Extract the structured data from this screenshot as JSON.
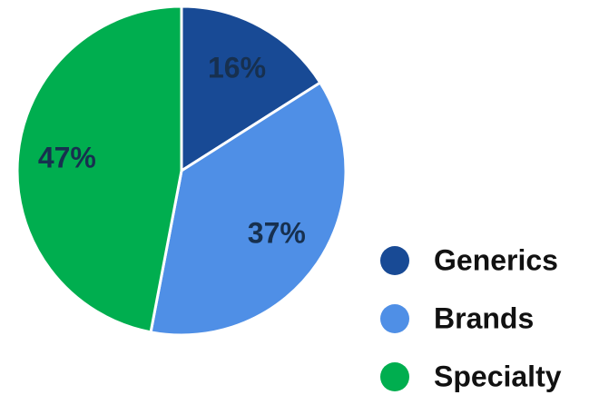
{
  "chart_data": {
    "type": "pie",
    "categories": [
      "Generics",
      "Brands",
      "Specialty"
    ],
    "values": [
      16,
      37,
      47
    ],
    "value_labels": [
      "16%",
      "37%",
      "47%"
    ],
    "colors": [
      "#184a95",
      "#4f8fe6",
      "#00ae4f"
    ],
    "legend": "bottom-right"
  }
}
